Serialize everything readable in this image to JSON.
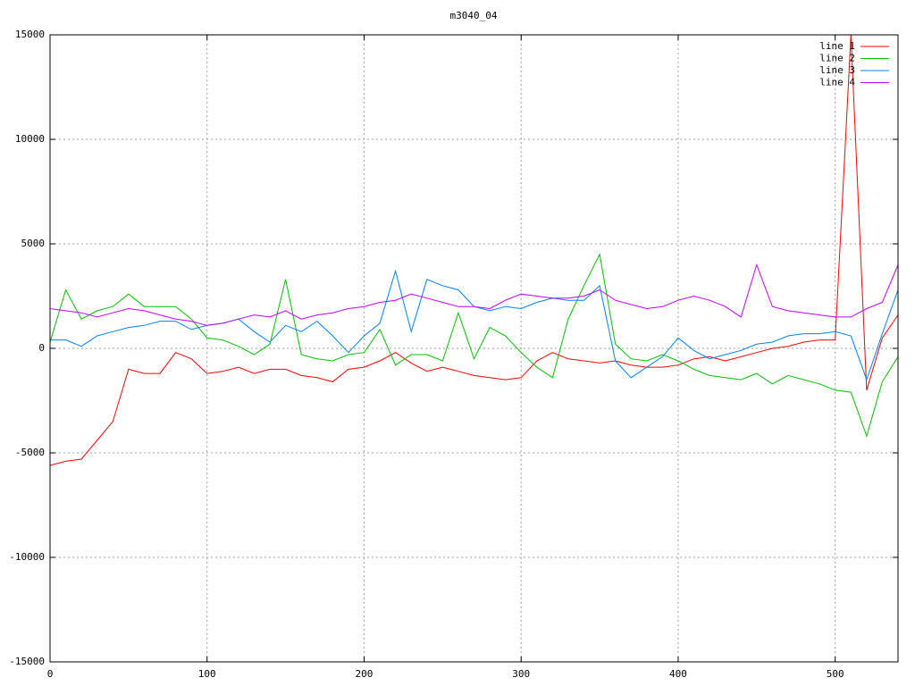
{
  "chart_data": {
    "type": "line",
    "title": "m3040_04",
    "x": [
      0,
      10,
      20,
      30,
      40,
      50,
      60,
      70,
      80,
      90,
      100,
      110,
      120,
      130,
      140,
      150,
      160,
      170,
      180,
      190,
      200,
      210,
      220,
      230,
      240,
      250,
      260,
      270,
      280,
      290,
      300,
      310,
      320,
      330,
      340,
      350,
      360,
      370,
      380,
      390,
      400,
      410,
      420,
      430,
      440,
      450,
      460,
      470,
      480,
      490,
      500,
      510,
      520,
      530,
      540
    ],
    "series": [
      {
        "name": "line 1",
        "color": "#ff0000",
        "values": [
          -5600,
          -5400,
          -5300,
          -4400,
          -3500,
          -1000,
          -1200,
          -1200,
          -200,
          -500,
          -1200,
          -1100,
          -900,
          -1200,
          -1000,
          -1000,
          -1300,
          -1400,
          -1600,
          -1000,
          -900,
          -600,
          -200,
          -700,
          -1100,
          -900,
          -1100,
          -1300,
          -1400,
          -1500,
          -1400,
          -600,
          -200,
          -500,
          -600,
          -700,
          -600,
          -800,
          -900,
          -900,
          -800,
          -500,
          -400,
          -600,
          -400,
          -200,
          0,
          100,
          300,
          400,
          400,
          15000,
          -2000,
          500,
          1600
        ]
      },
      {
        "name": "line 2",
        "color": "#00c000",
        "values": [
          300,
          2800,
          1400,
          1800,
          2000,
          2600,
          2000,
          2000,
          2000,
          1400,
          500,
          400,
          100,
          -300,
          200,
          3300,
          -300,
          -500,
          -600,
          -300,
          -200,
          900,
          -800,
          -300,
          -300,
          -600,
          1700,
          -500,
          1000,
          600,
          -200,
          -900,
          -1400,
          1400,
          3000,
          4500,
          200,
          -500,
          -600,
          -300,
          -600,
          -1000,
          -1300,
          -1400,
          -1500,
          -1200,
          -1700,
          -1300,
          -1500,
          -1700,
          -2000,
          -2100,
          -4200,
          -1600,
          -400
        ]
      },
      {
        "name": "line 3",
        "color": "#0080ff",
        "values": [
          400,
          400,
          100,
          600,
          800,
          1000,
          1100,
          1300,
          1300,
          900,
          1100,
          1200,
          1400,
          800,
          300,
          1100,
          800,
          1300,
          600,
          -200,
          600,
          1200,
          3700,
          800,
          3300,
          3000,
          2800,
          2000,
          1800,
          2000,
          1900,
          2200,
          2400,
          2300,
          2300,
          3000,
          -600,
          -1400,
          -900,
          -400,
          500,
          -100,
          -500,
          -300,
          -100,
          200,
          300,
          600,
          700,
          700,
          800,
          600,
          -1500,
          700,
          2800
        ]
      },
      {
        "name": "line 4",
        "color": "#c000ff",
        "values": [
          1900,
          1800,
          1700,
          1500,
          1700,
          1900,
          1800,
          1600,
          1400,
          1300,
          1100,
          1200,
          1400,
          1600,
          1500,
          1800,
          1400,
          1600,
          1700,
          1900,
          2000,
          2200,
          2300,
          2600,
          2400,
          2200,
          2000,
          2000,
          1900,
          2300,
          2600,
          2500,
          2400,
          2400,
          2500,
          2800,
          2300,
          2100,
          1900,
          2000,
          2300,
          2500,
          2300,
          2000,
          1500,
          4000,
          2000,
          1800,
          1700,
          1600,
          1500,
          1500,
          1900,
          2200,
          4000
        ]
      }
    ],
    "xlim": [
      0,
      540
    ],
    "xticks": [
      0,
      100,
      200,
      300,
      400,
      500
    ],
    "ylim": [
      -15000,
      15000
    ],
    "yticks": [
      -15000,
      -10000,
      -5000,
      0,
      5000,
      10000,
      15000
    ],
    "grid": true,
    "legend": "top-right"
  }
}
